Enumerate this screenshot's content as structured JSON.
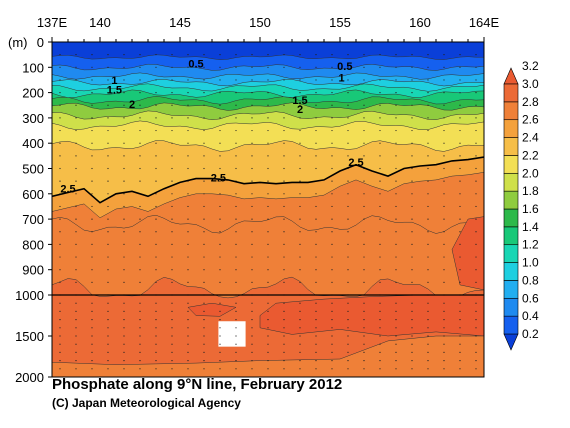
{
  "chart_data": {
    "type": "heatmap",
    "title": "Phosphate along 9°N line, February 2012",
    "credit": "(C) Japan Meteorological Agency",
    "ylabel_unit": "(m)",
    "x_ticks": [
      {
        "value": 137,
        "label": "137E"
      },
      {
        "value": 140,
        "label": "140"
      },
      {
        "value": 145,
        "label": "145"
      },
      {
        "value": 150,
        "label": "150"
      },
      {
        "value": 155,
        "label": "155"
      },
      {
        "value": 160,
        "label": "160"
      },
      {
        "value": 164,
        "label": "164E"
      }
    ],
    "xlim": [
      137,
      164
    ],
    "y_upper_ticks": [
      0,
      100,
      200,
      300,
      400,
      500,
      600,
      700,
      800,
      900,
      1000
    ],
    "y_lower_ticks": [
      1000,
      1500,
      2000
    ],
    "y_break": 1000,
    "colorbar": {
      "levels": [
        0.2,
        0.4,
        0.6,
        0.8,
        1.0,
        1.2,
        1.4,
        1.6,
        1.8,
        2.0,
        2.2,
        2.4,
        2.6,
        2.8,
        3.0,
        3.2
      ],
      "labels": [
        "0.2",
        "0.4",
        "0.6",
        "0.8",
        "1.0",
        "1.2",
        "1.4",
        "1.6",
        "1.8",
        "2.0",
        "2.2",
        "2.4",
        "2.6",
        "2.8",
        "3.0",
        "3.2"
      ],
      "colors": [
        "#0a3fd8",
        "#1560ef",
        "#1f8af0",
        "#22aef0",
        "#1ecfe0",
        "#18d6b4",
        "#18c878",
        "#2db94a",
        "#8fcc3f",
        "#cfe04a",
        "#f3df55",
        "#f6be48",
        "#f4a13c",
        "#ef8038",
        "#ec6a36",
        "#ea5a31"
      ]
    },
    "contour_labels": [
      {
        "text": "0.5",
        "lon": 146.0,
        "depth": 85
      },
      {
        "text": "0.5",
        "lon": 155.3,
        "depth": 95
      },
      {
        "text": "1",
        "lon": 140.9,
        "depth": 150
      },
      {
        "text": "1",
        "lon": 155.1,
        "depth": 140
      },
      {
        "text": "1.5",
        "lon": 140.9,
        "depth": 187
      },
      {
        "text": "1.5",
        "lon": 152.5,
        "depth": 230
      },
      {
        "text": "2",
        "lon": 142.0,
        "depth": 245
      },
      {
        "text": "2",
        "lon": 152.5,
        "depth": 265
      },
      {
        "text": "2.5",
        "lon": 138.0,
        "depth": 580
      },
      {
        "text": "2.5",
        "lon": 147.4,
        "depth": 535
      },
      {
        "text": "2.5",
        "lon": 156.0,
        "depth": 475
      }
    ],
    "isoline_2_5": [
      [
        137,
        610
      ],
      [
        138,
        595
      ],
      [
        139,
        580
      ],
      [
        140,
        635
      ],
      [
        141,
        600
      ],
      [
        142,
        590
      ],
      [
        143,
        610
      ],
      [
        144,
        580
      ],
      [
        145,
        555
      ],
      [
        146,
        540
      ],
      [
        147,
        540
      ],
      [
        148,
        545
      ],
      [
        149,
        560
      ],
      [
        150,
        555
      ],
      [
        151,
        560
      ],
      [
        152,
        555
      ],
      [
        153,
        555
      ],
      [
        154,
        545
      ],
      [
        155,
        510
      ],
      [
        156,
        485
      ],
      [
        157,
        510
      ],
      [
        158,
        530
      ],
      [
        159,
        500
      ],
      [
        160,
        490
      ],
      [
        161,
        485
      ],
      [
        162,
        470
      ],
      [
        163,
        465
      ],
      [
        164,
        455
      ]
    ],
    "missing_box": {
      "lon": [
        147.4,
        149.1
      ],
      "depth": [
        1320,
        1630
      ]
    }
  }
}
